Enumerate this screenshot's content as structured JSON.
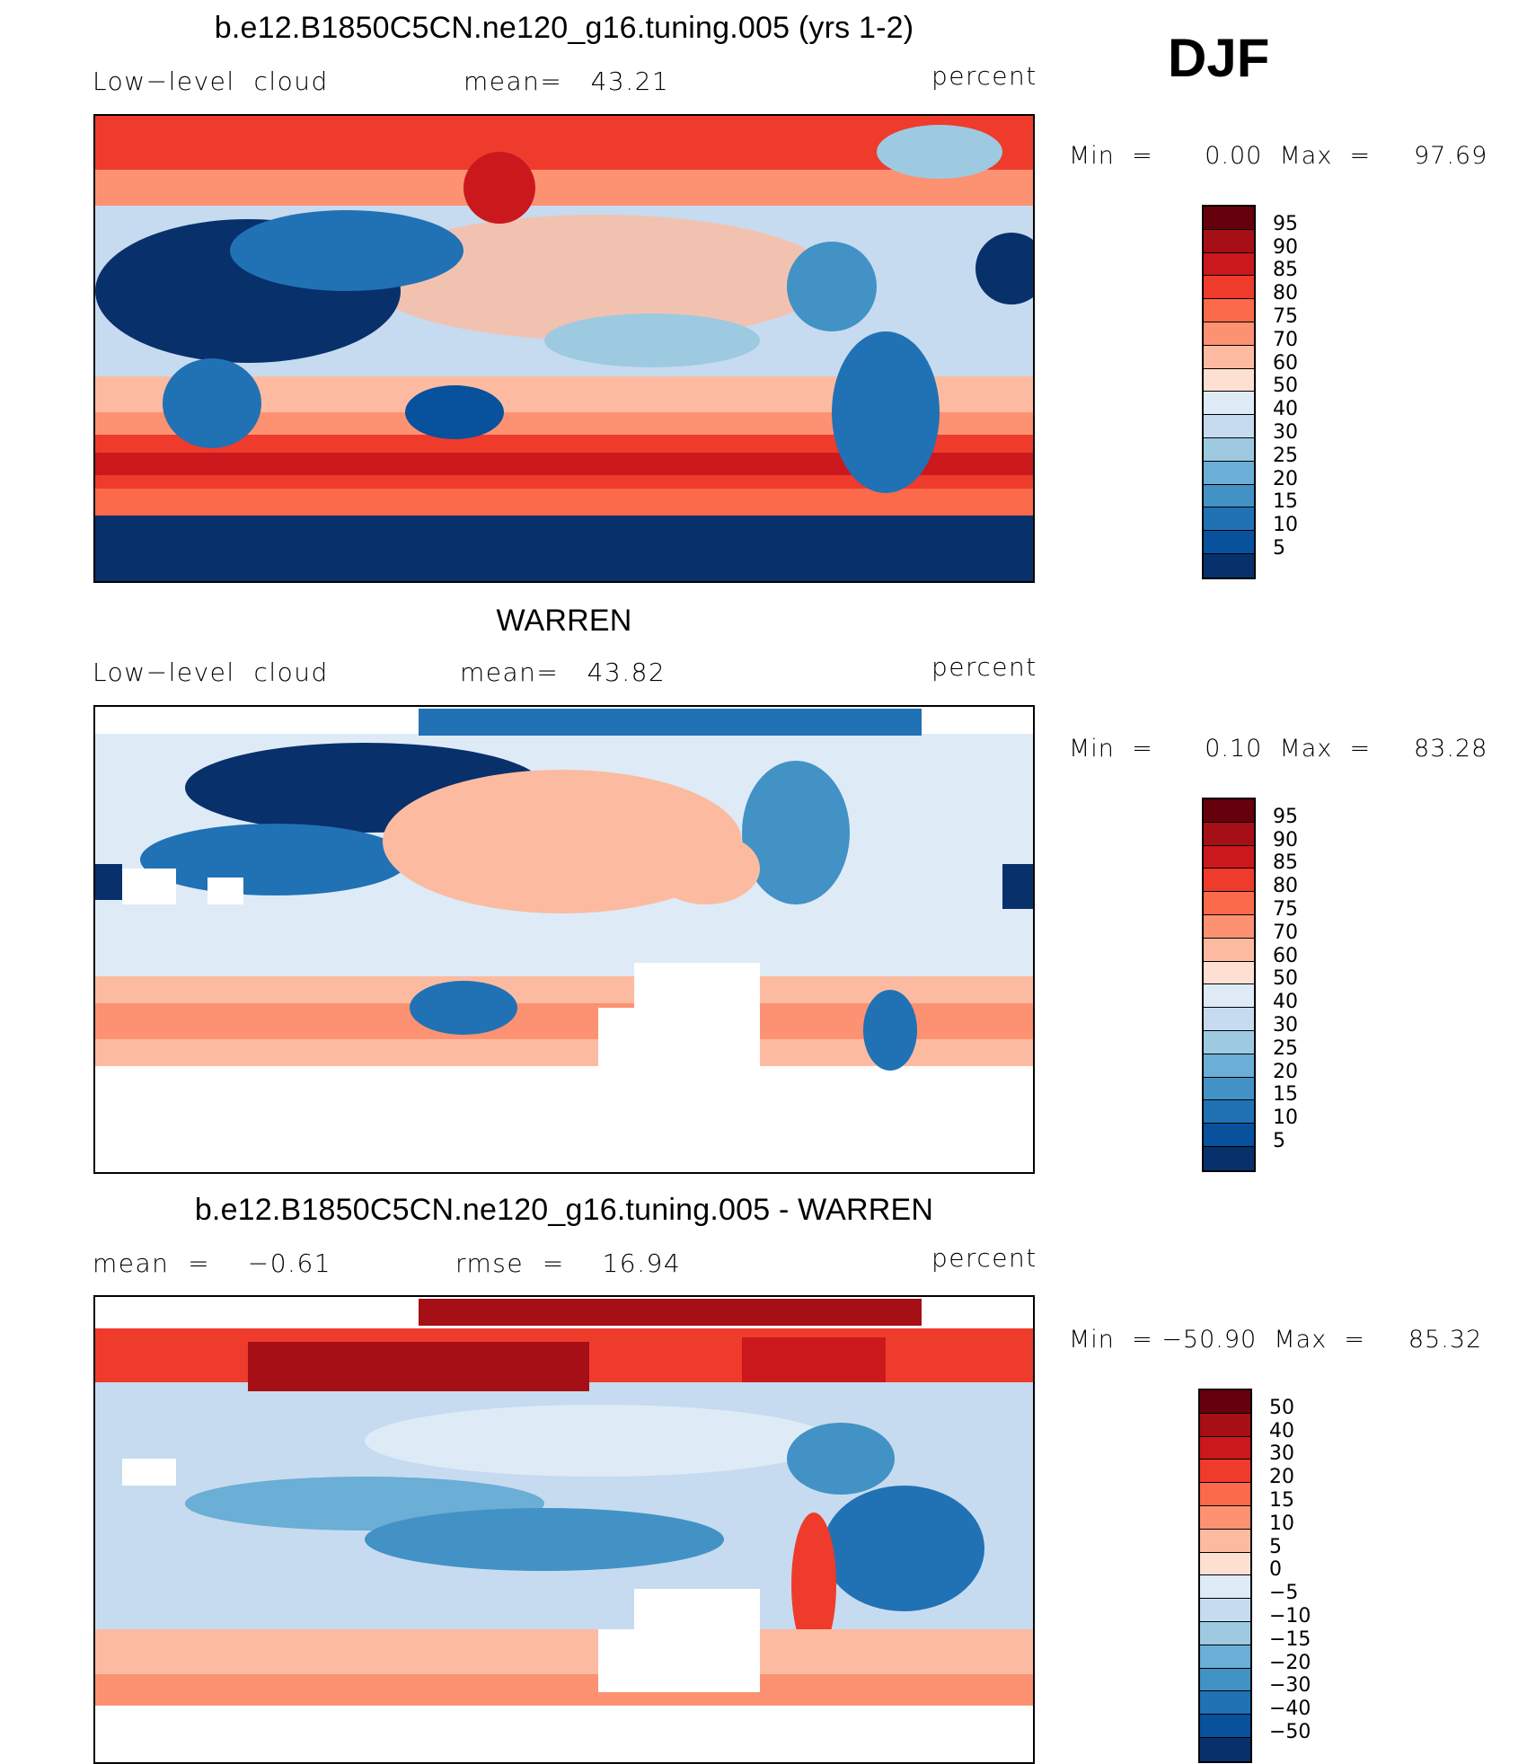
{
  "season": "DJF",
  "panels": [
    {
      "title": "b.e12.B1850C5CN.ne120_g16.tuning.005 (yrs 1-2)",
      "left": "Low−level  cloud",
      "center": "mean=   43.21",
      "right": "percent",
      "range": "Min  =      0.00  Max  =     97.69",
      "colorbar": {
        "labels": [
          "95",
          "90",
          "85",
          "80",
          "75",
          "70",
          "60",
          "50",
          "40",
          "30",
          "25",
          "20",
          "15",
          "10",
          "5"
        ],
        "colors": [
          "#67000d",
          "#a50f15",
          "#cb181d",
          "#ef3b2c",
          "#fb6a4a",
          "#fc9272",
          "#fcbba1",
          "#fee0d2",
          "#deebf7",
          "#c6dbef",
          "#9ecae1",
          "#6baed6",
          "#4292c6",
          "#2171b5",
          "#08519c",
          "#08306b"
        ]
      }
    },
    {
      "title": "WARREN",
      "left": "Low−level  cloud",
      "center": "mean=   43.82",
      "right": "percent",
      "range": "Min  =      0.10  Max  =     83.28",
      "colorbar": {
        "labels": [
          "95",
          "90",
          "85",
          "80",
          "75",
          "70",
          "60",
          "50",
          "40",
          "30",
          "25",
          "20",
          "15",
          "10",
          "5"
        ],
        "colors": [
          "#67000d",
          "#a50f15",
          "#cb181d",
          "#ef3b2c",
          "#fb6a4a",
          "#fc9272",
          "#fcbba1",
          "#fee0d2",
          "#deebf7",
          "#c6dbef",
          "#9ecae1",
          "#6baed6",
          "#4292c6",
          "#2171b5",
          "#08519c",
          "#08306b"
        ]
      }
    },
    {
      "title": "b.e12.B1850C5CN.ne120_g16.tuning.005 - WARREN",
      "left": "mean  =    −0.61",
      "center": "rmse  =    16.94",
      "right": "percent",
      "range": "Min  = −50.90  Max  =     85.32",
      "colorbar": {
        "labels": [
          "50",
          "40",
          "30",
          "20",
          "15",
          "10",
          "5",
          "0",
          "−5",
          "−10",
          "−15",
          "−20",
          "−30",
          "−40",
          "−50"
        ],
        "colors": [
          "#67000d",
          "#a50f15",
          "#cb181d",
          "#ef3b2c",
          "#fb6a4a",
          "#fc9272",
          "#fcbba1",
          "#fee0d2",
          "#deebf7",
          "#c6dbef",
          "#9ecae1",
          "#6baed6",
          "#4292c6",
          "#2171b5",
          "#08519c",
          "#08306b"
        ]
      }
    }
  ]
}
